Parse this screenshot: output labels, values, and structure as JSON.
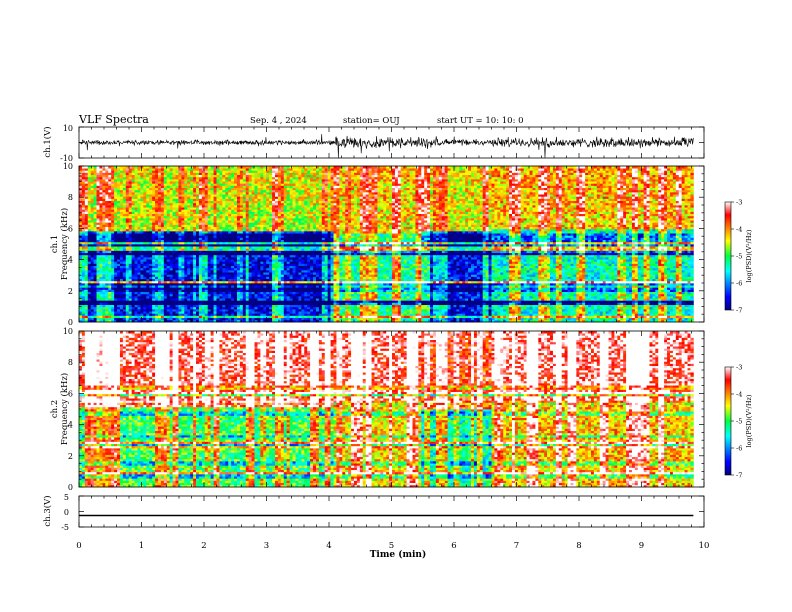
{
  "header": {
    "title": "VLF Spectra",
    "date": "Sep. 4 , 2024",
    "station": "station= OUJ",
    "start": "start UT = 10: 10: 0"
  },
  "chart_data": [
    {
      "type": "line",
      "name": "ch1-waveform",
      "ylabel": "ch.1(V)",
      "ylim": [
        -10,
        10
      ],
      "ytick_labels": [
        "10",
        "-10"
      ],
      "xlim": [
        0,
        10
      ],
      "x_extent_min": 9.83,
      "amplitude_profile": [
        {
          "t": 0.0,
          "amp": 1.4
        },
        {
          "t": 4.0,
          "amp": 1.4
        },
        {
          "t": 4.1,
          "amp": 3.2
        },
        {
          "t": 5.5,
          "amp": 3.6
        },
        {
          "t": 5.6,
          "amp": 1.8
        },
        {
          "t": 6.6,
          "amp": 2.0
        },
        {
          "t": 6.7,
          "amp": 3.0
        },
        {
          "t": 9.83,
          "amp": 3.0
        }
      ]
    },
    {
      "type": "heatmap",
      "name": "ch1-spectrogram",
      "ylabel": "ch.1 Frequency (kHz)",
      "ylim": [
        0,
        10
      ],
      "yticks": [
        0,
        2,
        4,
        6,
        8,
        10
      ],
      "xlim": [
        0,
        10
      ],
      "x_extent_min": 9.83,
      "colorbar": {
        "label": "log(PSD)(V²/Hz)",
        "min": -7,
        "max": -3,
        "ticks": [
          "-3",
          "-4",
          "-5",
          "-6",
          "-7"
        ]
      },
      "segments": [
        {
          "t0": 0.0,
          "t1": 4.05,
          "low_band_khz": [
            0,
            5.8
          ],
          "low_level": -6.6,
          "high_level": -4.8
        },
        {
          "t0": 4.05,
          "t1": 5.5,
          "low_band_khz": [
            0,
            5.0
          ],
          "low_level": -5.2,
          "high_level": -4.6
        },
        {
          "t0": 5.5,
          "t1": 6.6,
          "low_band_khz": [
            0,
            5.8
          ],
          "low_level": -6.5,
          "high_level": -4.7
        },
        {
          "t0": 6.6,
          "t1": 9.83,
          "low_band_khz": [
            0,
            6.0
          ],
          "low_level": -5.4,
          "high_level": -4.5
        }
      ]
    },
    {
      "type": "heatmap",
      "name": "ch2-spectrogram",
      "ylabel": "ch.2 Frequency (kHz)",
      "ylim": [
        0,
        10
      ],
      "yticks": [
        0,
        2,
        4,
        6,
        8,
        10
      ],
      "xlim": [
        0,
        10
      ],
      "x_extent_min": 9.83,
      "colorbar": {
        "label": "log(PSD)(V²/Hz)",
        "min": -7,
        "max": -3,
        "ticks": [
          "-3",
          "-4",
          "-5",
          "-6",
          "-7"
        ]
      },
      "segments": [
        {
          "t0": 0.0,
          "t1": 4.05,
          "low_band_khz": [
            0,
            5.2
          ],
          "low_level": -5.0,
          "high_level": -3.6
        },
        {
          "t0": 4.05,
          "t1": 5.5,
          "low_band_khz": [
            0,
            5.5
          ],
          "low_level": -4.3,
          "high_level": -3.6
        },
        {
          "t0": 5.5,
          "t1": 6.6,
          "low_band_khz": [
            0,
            5.0
          ],
          "low_level": -5.3,
          "high_level": -3.9
        },
        {
          "t0": 6.6,
          "t1": 9.83,
          "low_band_khz": [
            0,
            5.5
          ],
          "low_level": -4.2,
          "high_level": -3.5
        }
      ]
    },
    {
      "type": "line",
      "name": "ch3-waveform",
      "ylabel": "ch.3(V)",
      "ylim": [
        -5,
        5
      ],
      "ytick_labels": [
        "5",
        "0",
        "-5"
      ],
      "xlim": [
        0,
        10
      ],
      "x_extent_min": 9.83,
      "constant_value": -1.3
    }
  ],
  "xaxis": {
    "label": "Time (min)",
    "ticks": [
      "0",
      "1",
      "2",
      "3",
      "4",
      "5",
      "6",
      "7",
      "8",
      "9",
      "10"
    ]
  }
}
